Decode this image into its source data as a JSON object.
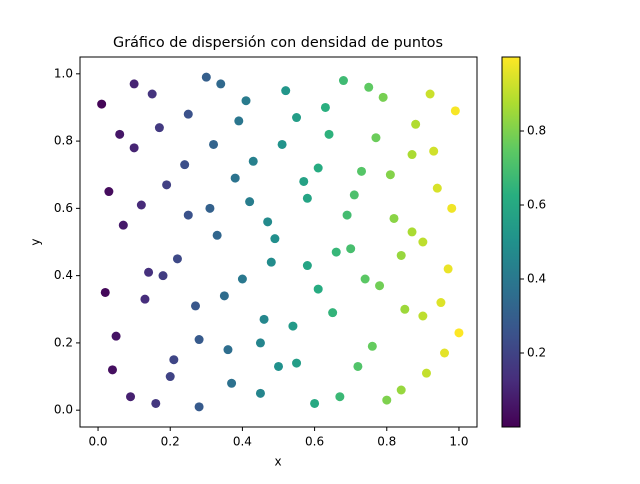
{
  "chart_data": {
    "type": "scatter",
    "title": "Gráfico de dispersión con densidad de puntos",
    "x_label": "x",
    "y_label": "y",
    "colormap": "viridis",
    "x": [
      0.01,
      0.04,
      0.07,
      0.1,
      0.13,
      0.16,
      0.19,
      0.22,
      0.25,
      0.28,
      0.31,
      0.34,
      0.37,
      0.4,
      0.43,
      0.46,
      0.49,
      0.52,
      0.55,
      0.58,
      0.61,
      0.64,
      0.67,
      0.7,
      0.73,
      0.76,
      0.79,
      0.82,
      0.85,
      0.88,
      0.91,
      0.94,
      0.97,
      1.0,
      0.02,
      0.06,
      0.09,
      0.12,
      0.15,
      0.18,
      0.21,
      0.24,
      0.27,
      0.3,
      0.33,
      0.36,
      0.39,
      0.42,
      0.45,
      0.48,
      0.51,
      0.54,
      0.57,
      0.6,
      0.63,
      0.66,
      0.69,
      0.72,
      0.75,
      0.78,
      0.81,
      0.84,
      0.87,
      0.9,
      0.93,
      0.96,
      0.99,
      0.03,
      0.05,
      0.1,
      0.14,
      0.17,
      0.2,
      0.25,
      0.28,
      0.32,
      0.35,
      0.38,
      0.41,
      0.45,
      0.47,
      0.5,
      0.55,
      0.58,
      0.61,
      0.65,
      0.68,
      0.71,
      0.74,
      0.77,
      0.8,
      0.84,
      0.87,
      0.9,
      0.92,
      0.95,
      0.98
    ],
    "y": [
      0.91,
      0.12,
      0.55,
      0.78,
      0.33,
      0.02,
      0.67,
      0.45,
      0.88,
      0.21,
      0.6,
      0.97,
      0.08,
      0.39,
      0.74,
      0.27,
      0.51,
      0.95,
      0.14,
      0.63,
      0.36,
      0.82,
      0.04,
      0.48,
      0.71,
      0.19,
      0.93,
      0.57,
      0.3,
      0.85,
      0.11,
      0.66,
      0.42,
      0.23,
      0.35,
      0.82,
      0.04,
      0.61,
      0.94,
      0.4,
      0.15,
      0.73,
      0.31,
      0.99,
      0.52,
      0.18,
      0.86,
      0.62,
      0.05,
      0.44,
      0.79,
      0.25,
      0.68,
      0.02,
      0.9,
      0.47,
      0.58,
      0.13,
      0.96,
      0.37,
      0.7,
      0.06,
      0.53,
      0.28,
      0.77,
      0.17,
      0.89,
      0.65,
      0.22,
      0.97,
      0.41,
      0.84,
      0.1,
      0.58,
      0.01,
      0.79,
      0.34,
      0.69,
      0.92,
      0.2,
      0.56,
      0.13,
      0.87,
      0.43,
      0.72,
      0.29,
      0.98,
      0.64,
      0.39,
      0.81,
      0.03,
      0.46,
      0.76,
      0.5,
      0.94,
      0.32,
      0.6
    ],
    "xlim": [
      -0.05,
      1.05
    ],
    "ylim": [
      -0.05,
      1.05
    ],
    "xticks": [
      {
        "value": 0,
        "label": "0.0"
      },
      0.2,
      0.4,
      0.6,
      0.8,
      {
        "value": 1,
        "label": "1.0"
      }
    ],
    "yticks": [
      {
        "value": 0,
        "label": "0.0"
      },
      0.2,
      0.4,
      0.6,
      0.8,
      {
        "value": 1,
        "label": "1.0"
      }
    ],
    "clim": [
      0,
      1
    ],
    "cticks": [
      0.2,
      0.4,
      0.6,
      0.8
    ]
  }
}
